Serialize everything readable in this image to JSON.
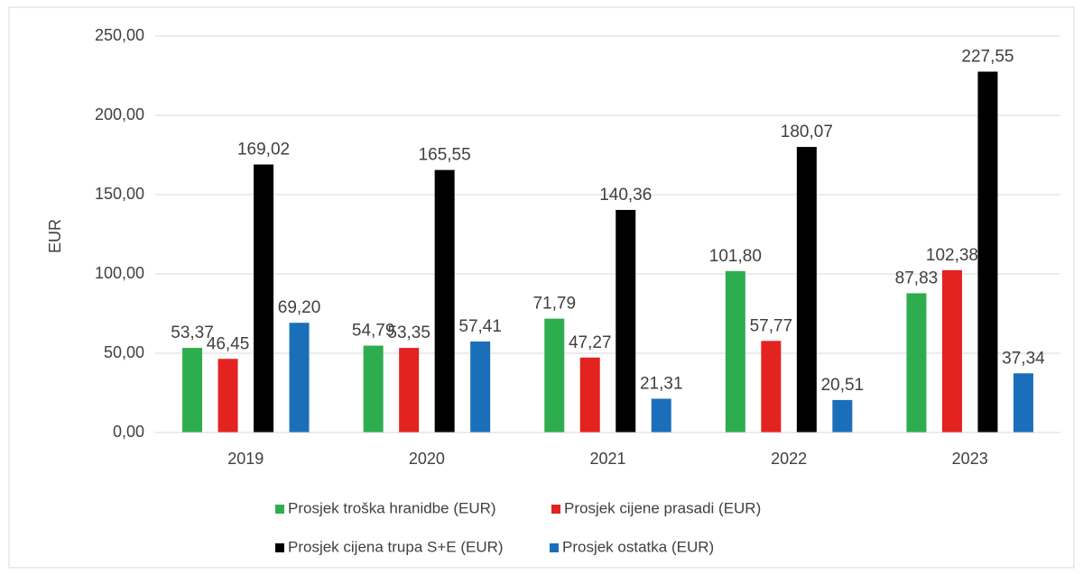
{
  "chart_data": {
    "type": "bar",
    "y_label": "EUR",
    "categories": [
      "2019",
      "2020",
      "2021",
      "2022",
      "2023"
    ],
    "series": [
      {
        "name": "Prosjek troška hranidbe (EUR)",
        "color": "#2ead4e",
        "values": [
          53.37,
          54.79,
          71.79,
          101.8,
          87.83
        ],
        "value_labels": [
          "53,37",
          "54,79",
          "71,79",
          "101,80",
          "87,83"
        ]
      },
      {
        "name": "Prosjek cijene prasadi (EUR)",
        "color": "#e3231f",
        "values": [
          46.45,
          53.35,
          47.27,
          57.77,
          102.38
        ],
        "value_labels": [
          "46,45",
          "53,35",
          "47,27",
          "57,77",
          "102,38"
        ]
      },
      {
        "name": "Prosjek cijena trupa S+E (EUR)",
        "color": "#000000",
        "values": [
          169.02,
          165.55,
          140.36,
          180.07,
          227.55
        ],
        "value_labels": [
          "169,02",
          "165,55",
          "140,36",
          "180,07",
          "227,55"
        ]
      },
      {
        "name": "Prosjek ostatka (EUR)",
        "color": "#1b6fba",
        "values": [
          69.2,
          57.41,
          21.31,
          20.51,
          37.34
        ],
        "value_labels": [
          "69,20",
          "57,41",
          "21,31",
          "20,51",
          "37,34"
        ]
      }
    ],
    "ylim": [
      0,
      250
    ],
    "yticks": [
      {
        "value": 0,
        "label": "0,00"
      },
      {
        "value": 50,
        "label": "50,00"
      },
      {
        "value": 100,
        "label": "100,00"
      },
      {
        "value": 150,
        "label": "150,00"
      },
      {
        "value": 200,
        "label": "200,00"
      },
      {
        "value": 250,
        "label": "250,00"
      }
    ],
    "grid": true,
    "legend": "bottom"
  }
}
